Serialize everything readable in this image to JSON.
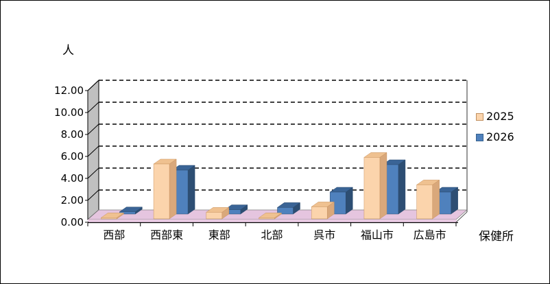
{
  "window": {
    "background": "#FFFFFF",
    "border_color": "#000000"
  },
  "chart_data": {
    "type": "bar",
    "style": "3d-clustered-column",
    "title": "",
    "ylabel": "人",
    "xlabel": "保健所",
    "categories": [
      "西部",
      "西部東",
      "東部",
      "北部",
      "呉市",
      "福山市",
      "広島市"
    ],
    "series": [
      {
        "name": "2025",
        "values": [
          0.1,
          5.0,
          0.6,
          0.1,
          1.1,
          5.6,
          3.1
        ],
        "color": "#FBD4AC",
        "color_top": "#EFC190",
        "color_side": "#D9A87B",
        "color_edge": "#C9935F"
      },
      {
        "name": "2026",
        "values": [
          0.2,
          4.0,
          0.4,
          0.6,
          2.0,
          4.5,
          2.0
        ],
        "color": "#4F81BD",
        "color_top": "#3A6496",
        "color_side": "#2D4E73",
        "color_edge": "#2A4A6E"
      }
    ],
    "ylim": [
      0,
      12
    ],
    "ytick_step": 2,
    "ytick_labels": [
      "0.00",
      "2.00",
      "4.00",
      "6.00",
      "8.00",
      "10.00",
      "12.00"
    ],
    "grid": "dashed",
    "legend_position": "right",
    "colors": {
      "wall": "#C0C0C0",
      "floor": "#E5C5DF",
      "floor_bevel": "#EACBE4",
      "gridline": "#000000",
      "axis_text": "#000000",
      "plot_edge": "#555555"
    }
  },
  "legend": {
    "items": [
      {
        "label": "2025",
        "color": "#FBD4AC",
        "border": "#BF8F5F"
      },
      {
        "label": "2026",
        "color": "#4F81BD",
        "border": "#36618E"
      }
    ]
  }
}
